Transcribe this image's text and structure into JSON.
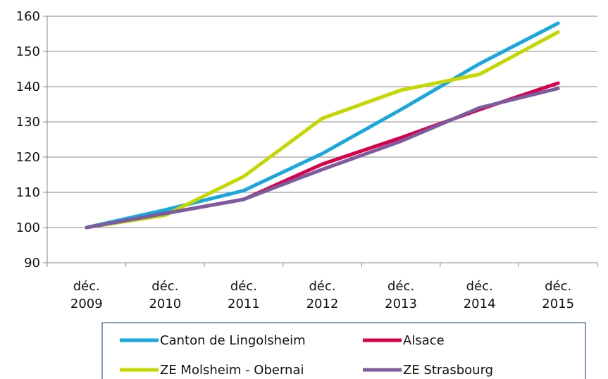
{
  "chart_data": {
    "type": "line",
    "categories": [
      [
        "déc.",
        "2009"
      ],
      [
        "déc.",
        "2010"
      ],
      [
        "déc.",
        "2011"
      ],
      [
        "déc.",
        "2012"
      ],
      [
        "déc.",
        "2013"
      ],
      [
        "déc.",
        "2014"
      ],
      [
        "déc.",
        "2015"
      ]
    ],
    "ylim": [
      90,
      160
    ],
    "yticks": [
      90,
      100,
      110,
      120,
      130,
      140,
      150,
      160
    ],
    "grid": "horizontal",
    "legend_position": "bottom",
    "series": [
      {
        "name": "Canton de Lingolsheim",
        "color": "#1AA7DD",
        "values": [
          100,
          105,
          110.5,
          121,
          133.5,
          146.5,
          158
        ]
      },
      {
        "name": "Alsace",
        "color": "#D8004A",
        "values": [
          100,
          104,
          108,
          118,
          125.5,
          133.5,
          141
        ]
      },
      {
        "name": "ZE Molsheim - Obernai",
        "color": "#C4D800",
        "values": [
          100,
          103.5,
          114.5,
          131,
          139,
          143.5,
          155.5
        ]
      },
      {
        "name": "ZE Strasbourg",
        "color": "#7C5C9E",
        "values": [
          100,
          104,
          108,
          116.5,
          124.5,
          134,
          139.5
        ]
      }
    ]
  }
}
